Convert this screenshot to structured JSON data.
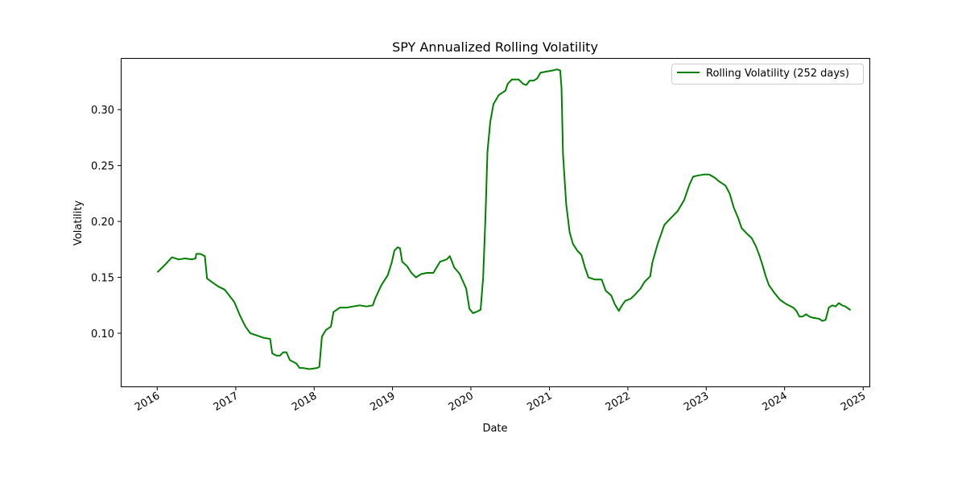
{
  "chart_data": {
    "type": "line",
    "title": "SPY Annualized Rolling Volatility",
    "xlabel": "Date",
    "ylabel": "Volatility",
    "xlim": [
      "2015-07-19",
      "2025-01-30"
    ],
    "ylim": [
      0.0525,
      0.3455
    ],
    "x_ticks": [
      "2016",
      "2017",
      "2018",
      "2019",
      "2020",
      "2021",
      "2022",
      "2023",
      "2024",
      "2025"
    ],
    "y_ticks": [
      "0.10",
      "0.15",
      "0.20",
      "0.25",
      "0.30"
    ],
    "grid": false,
    "legend": {
      "position": "top-right"
    },
    "series": [
      {
        "name": "Rolling Volatility (252 days)",
        "color": "#008000",
        "points": [
          [
            "2016-01-04",
            0.155
          ],
          [
            "2016-01-20",
            0.158
          ],
          [
            "2016-02-10",
            0.162
          ],
          [
            "2016-03-10",
            0.168
          ],
          [
            "2016-04-10",
            0.166
          ],
          [
            "2016-05-10",
            0.167
          ],
          [
            "2016-06-10",
            0.166
          ],
          [
            "2016-06-28",
            0.167
          ],
          [
            "2016-07-01",
            0.171
          ],
          [
            "2016-07-20",
            0.171
          ],
          [
            "2016-08-10",
            0.169
          ],
          [
            "2016-08-20",
            0.149
          ],
          [
            "2016-09-10",
            0.146
          ],
          [
            "2016-10-10",
            0.142
          ],
          [
            "2016-11-10",
            0.139
          ],
          [
            "2016-12-05",
            0.133
          ],
          [
            "2016-12-25",
            0.128
          ],
          [
            "2017-01-20",
            0.116
          ],
          [
            "2017-02-15",
            0.106
          ],
          [
            "2017-03-10",
            0.1
          ],
          [
            "2017-04-10",
            0.098
          ],
          [
            "2017-05-10",
            0.096
          ],
          [
            "2017-06-10",
            0.095
          ],
          [
            "2017-06-20",
            0.082
          ],
          [
            "2017-07-10",
            0.08
          ],
          [
            "2017-07-25",
            0.08
          ],
          [
            "2017-08-10",
            0.083
          ],
          [
            "2017-08-25",
            0.083
          ],
          [
            "2017-09-10",
            0.076
          ],
          [
            "2017-10-10",
            0.073
          ],
          [
            "2017-10-25",
            0.069
          ],
          [
            "2017-11-10",
            0.069
          ],
          [
            "2017-12-10",
            0.068
          ],
          [
            "2018-01-15",
            0.069
          ],
          [
            "2018-01-25",
            0.07
          ],
          [
            "2018-02-06",
            0.097
          ],
          [
            "2018-02-25",
            0.103
          ],
          [
            "2018-03-20",
            0.106
          ],
          [
            "2018-04-01",
            0.119
          ],
          [
            "2018-05-01",
            0.123
          ],
          [
            "2018-06-01",
            0.123
          ],
          [
            "2018-07-01",
            0.124
          ],
          [
            "2018-08-01",
            0.125
          ],
          [
            "2018-09-01",
            0.124
          ],
          [
            "2018-10-01",
            0.125
          ],
          [
            "2018-10-12",
            0.131
          ],
          [
            "2018-11-10",
            0.143
          ],
          [
            "2018-12-10",
            0.152
          ],
          [
            "2018-12-28",
            0.163
          ],
          [
            "2019-01-10",
            0.174
          ],
          [
            "2019-01-25",
            0.177
          ],
          [
            "2019-02-05",
            0.176
          ],
          [
            "2019-02-15",
            0.164
          ],
          [
            "2019-03-10",
            0.16
          ],
          [
            "2019-03-30",
            0.154
          ],
          [
            "2019-04-20",
            0.15
          ],
          [
            "2019-05-15",
            0.153
          ],
          [
            "2019-06-10",
            0.154
          ],
          [
            "2019-07-10",
            0.154
          ],
          [
            "2019-08-10",
            0.164
          ],
          [
            "2019-09-10",
            0.166
          ],
          [
            "2019-09-25",
            0.169
          ],
          [
            "2019-10-15",
            0.159
          ],
          [
            "2019-11-10",
            0.153
          ],
          [
            "2019-12-10",
            0.14
          ],
          [
            "2019-12-25",
            0.122
          ],
          [
            "2020-01-10",
            0.118
          ],
          [
            "2020-01-25",
            0.119
          ],
          [
            "2020-02-15",
            0.121
          ],
          [
            "2020-02-27",
            0.15
          ],
          [
            "2020-03-09",
            0.205
          ],
          [
            "2020-03-18",
            0.262
          ],
          [
            "2020-03-31",
            0.289
          ],
          [
            "2020-04-15",
            0.305
          ],
          [
            "2020-05-10",
            0.313
          ],
          [
            "2020-06-10",
            0.317
          ],
          [
            "2020-06-20",
            0.323
          ],
          [
            "2020-07-10",
            0.327
          ],
          [
            "2020-08-10",
            0.327
          ],
          [
            "2020-09-01",
            0.323
          ],
          [
            "2020-09-15",
            0.322
          ],
          [
            "2020-10-01",
            0.326
          ],
          [
            "2020-10-20",
            0.326
          ],
          [
            "2020-11-05",
            0.328
          ],
          [
            "2020-11-20",
            0.333
          ],
          [
            "2020-12-15",
            0.334
          ],
          [
            "2021-01-15",
            0.335
          ],
          [
            "2021-02-05",
            0.336
          ],
          [
            "2021-02-20",
            0.335
          ],
          [
            "2021-02-26",
            0.32
          ],
          [
            "2021-03-05",
            0.26
          ],
          [
            "2021-03-20",
            0.215
          ],
          [
            "2021-04-05",
            0.19
          ],
          [
            "2021-04-20",
            0.18
          ],
          [
            "2021-05-10",
            0.174
          ],
          [
            "2021-05-30",
            0.17
          ],
          [
            "2021-06-15",
            0.159
          ],
          [
            "2021-07-01",
            0.15
          ],
          [
            "2021-08-01",
            0.148
          ],
          [
            "2021-09-01",
            0.148
          ],
          [
            "2021-09-20",
            0.138
          ],
          [
            "2021-10-15",
            0.134
          ],
          [
            "2021-11-01",
            0.126
          ],
          [
            "2021-11-20",
            0.12
          ],
          [
            "2021-12-05",
            0.125
          ],
          [
            "2021-12-20",
            0.129
          ],
          [
            "2022-01-15",
            0.131
          ],
          [
            "2022-02-05",
            0.135
          ],
          [
            "2022-03-01",
            0.14
          ],
          [
            "2022-03-20",
            0.146
          ],
          [
            "2022-04-15",
            0.151
          ],
          [
            "2022-04-25",
            0.163
          ],
          [
            "2022-05-20",
            0.18
          ],
          [
            "2022-06-20",
            0.197
          ],
          [
            "2022-07-20",
            0.203
          ],
          [
            "2022-08-20",
            0.209
          ],
          [
            "2022-09-20",
            0.219
          ],
          [
            "2022-10-15",
            0.233
          ],
          [
            "2022-11-01",
            0.24
          ],
          [
            "2022-11-20",
            0.241
          ],
          [
            "2022-12-20",
            0.242
          ],
          [
            "2023-01-15",
            0.242
          ],
          [
            "2023-02-10",
            0.239
          ],
          [
            "2023-03-01",
            0.236
          ],
          [
            "2023-04-01",
            0.232
          ],
          [
            "2023-04-20",
            0.225
          ],
          [
            "2023-05-10",
            0.212
          ],
          [
            "2023-05-30",
            0.203
          ],
          [
            "2023-06-15",
            0.194
          ],
          [
            "2023-07-10",
            0.189
          ],
          [
            "2023-08-01",
            0.185
          ],
          [
            "2023-08-20",
            0.178
          ],
          [
            "2023-09-05",
            0.17
          ],
          [
            "2023-09-20",
            0.161
          ],
          [
            "2023-10-05",
            0.151
          ],
          [
            "2023-10-20",
            0.143
          ],
          [
            "2023-11-15",
            0.136
          ],
          [
            "2023-12-10",
            0.13
          ],
          [
            "2024-01-10",
            0.126
          ],
          [
            "2024-02-10",
            0.123
          ],
          [
            "2024-02-25",
            0.12
          ],
          [
            "2024-03-10",
            0.115
          ],
          [
            "2024-03-25",
            0.115
          ],
          [
            "2024-04-10",
            0.117
          ],
          [
            "2024-04-25",
            0.115
          ],
          [
            "2024-05-10",
            0.114
          ],
          [
            "2024-06-10",
            0.113
          ],
          [
            "2024-06-25",
            0.111
          ],
          [
            "2024-07-10",
            0.112
          ],
          [
            "2024-07-25",
            0.123
          ],
          [
            "2024-08-10",
            0.125
          ],
          [
            "2024-08-25",
            0.124
          ],
          [
            "2024-09-10",
            0.127
          ],
          [
            "2024-09-25",
            0.125
          ],
          [
            "2024-10-10",
            0.124
          ],
          [
            "2024-10-25",
            0.122
          ],
          [
            "2024-11-01",
            0.121
          ]
        ]
      }
    ]
  }
}
